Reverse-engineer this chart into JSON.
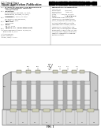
{
  "background": "#ffffff",
  "header": {
    "us_text": "(12) United States",
    "pub_type": "Patent Application Publication",
    "author": "Jansen et al.",
    "pub_no": "(10) Pub. No.: US 2013/0193584 A1",
    "pub_date": "(43) Pub. Date:        Aug. 1, 2013"
  },
  "diagram": {
    "substrate_color": "#c8c8c8",
    "chip_body_color": "#e0e0e0",
    "tsv_color": "#b0b0b0",
    "bump_color": "#d0d0c0",
    "line_color": "#444444",
    "white": "#ffffff"
  }
}
